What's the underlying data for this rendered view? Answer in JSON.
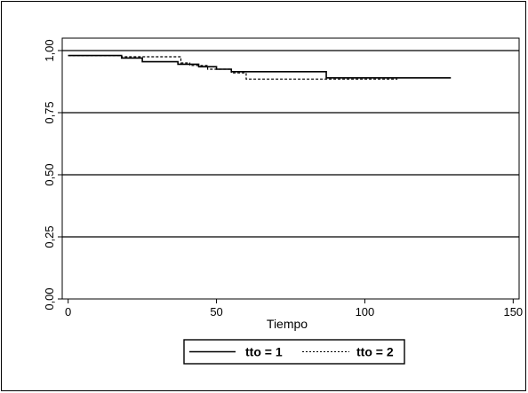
{
  "chart_data": {
    "type": "line",
    "title": "",
    "xlabel": "Tiempo",
    "ylabel": "",
    "xlim": [
      -2,
      152
    ],
    "ylim": [
      0,
      1.05
    ],
    "x_ticks": [
      0,
      50,
      100,
      150
    ],
    "x_tick_labels": [
      "0",
      "50",
      "100",
      "150"
    ],
    "y_ticks": [
      0,
      0.25,
      0.5,
      0.75,
      1.0
    ],
    "y_tick_labels": [
      "0,00",
      "0,25",
      "0,50",
      "0,75",
      "1,00"
    ],
    "grid": {
      "horizontal": true,
      "vertical": false
    },
    "legend_position": "bottom",
    "series": [
      {
        "name": "tto = 1",
        "style": "solid",
        "color": "#000000",
        "x": [
          0,
          18,
          25,
          37,
          44,
          50,
          55,
          87,
          129
        ],
        "y": [
          0.98,
          0.97,
          0.955,
          0.945,
          0.935,
          0.925,
          0.915,
          0.89,
          0.89
        ]
      },
      {
        "name": "tto = 2",
        "style": "dashed",
        "color": "#000000",
        "x": [
          0,
          18,
          38,
          41,
          47,
          55,
          60,
          111
        ],
        "y": [
          0.98,
          0.975,
          0.95,
          0.94,
          0.925,
          0.91,
          0.885,
          0.885
        ]
      }
    ]
  }
}
